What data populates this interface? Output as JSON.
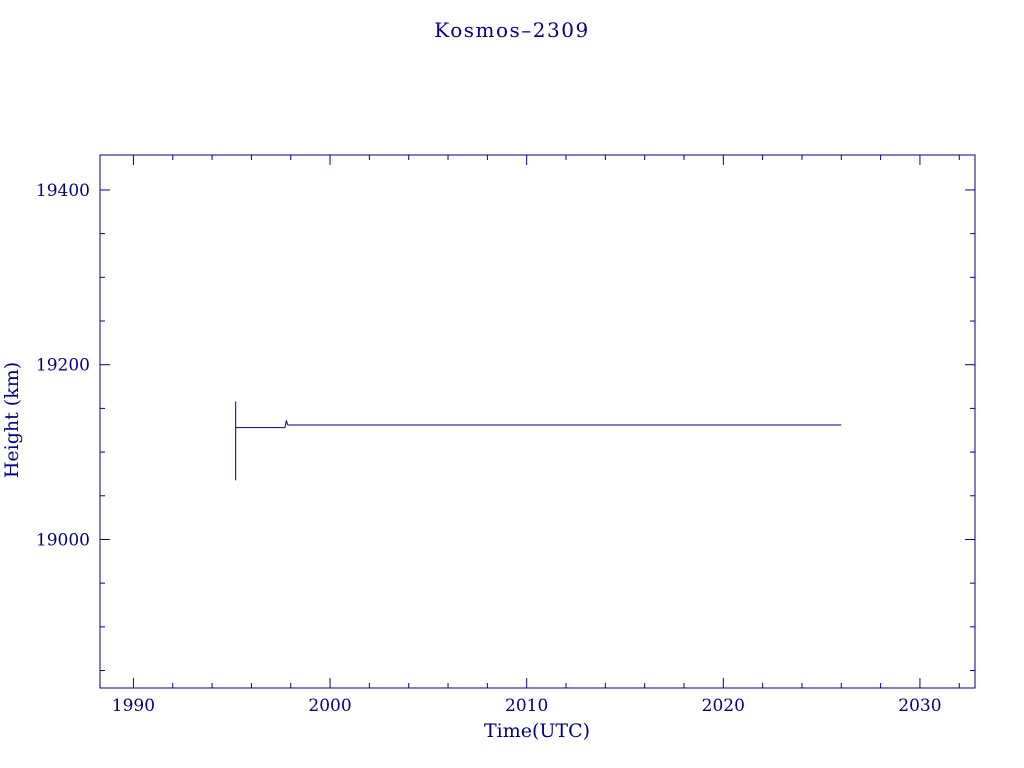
{
  "page": {
    "background_color": "#ffffff",
    "accent_color": "#000080"
  },
  "chart_data": {
    "type": "line",
    "title": "Kosmos–2309",
    "xlabel": "Time(UTC)",
    "ylabel": "Height (km)",
    "xlim": [
      1988.3,
      2032.8
    ],
    "ylim": [
      18830,
      19440
    ],
    "x_major_ticks": [
      1990,
      2000,
      2010,
      2020,
      2030
    ],
    "y_major_ticks": [
      19000,
      19200,
      19400
    ],
    "x_minor_step": 2,
    "y_minor_step": 50,
    "grid": false,
    "legend": "none",
    "line_color": "#000080",
    "axis_color": "#000080",
    "series": [
      {
        "name": "height",
        "points": [
          [
            1995.2,
            19158
          ],
          [
            1995.2,
            19068
          ],
          [
            1995.2,
            19128
          ],
          [
            1997.7,
            19128
          ],
          [
            1997.78,
            19136
          ],
          [
            1997.85,
            19131
          ],
          [
            2026.0,
            19131
          ]
        ]
      }
    ]
  }
}
